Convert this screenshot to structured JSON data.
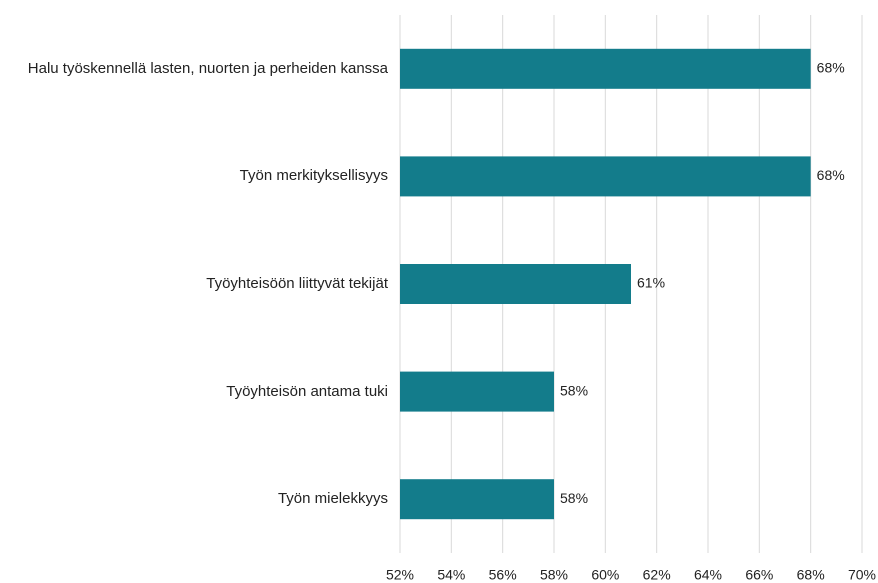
{
  "chart_data": {
    "type": "bar",
    "orientation": "horizontal",
    "categories": [
      "Halu työskennellä lasten, nuorten ja perheiden kanssa",
      "Työn merkityksellisyys",
      "Työyhteisöön liittyvät tekijät",
      "Työyhteisön antama tuki",
      "Työn mielekkyys"
    ],
    "values": [
      68,
      68,
      61,
      58,
      58
    ],
    "value_labels": [
      "68%",
      "68%",
      "61%",
      "58%",
      "58%"
    ],
    "color": "#137c8b",
    "xlim": [
      52,
      70
    ],
    "xticks": [
      {
        "value": 52,
        "label": "52%"
      },
      {
        "value": 54,
        "label": "54%"
      },
      {
        "value": 56,
        "label": "56%"
      },
      {
        "value": 58,
        "label": "58%"
      },
      {
        "value": 60,
        "label": "60%"
      },
      {
        "value": 62,
        "label": "62%"
      },
      {
        "value": 64,
        "label": "64%"
      },
      {
        "value": 66,
        "label": "66%"
      },
      {
        "value": 68,
        "label": "68%"
      },
      {
        "value": 70,
        "label": "70%"
      }
    ],
    "grid": true
  }
}
